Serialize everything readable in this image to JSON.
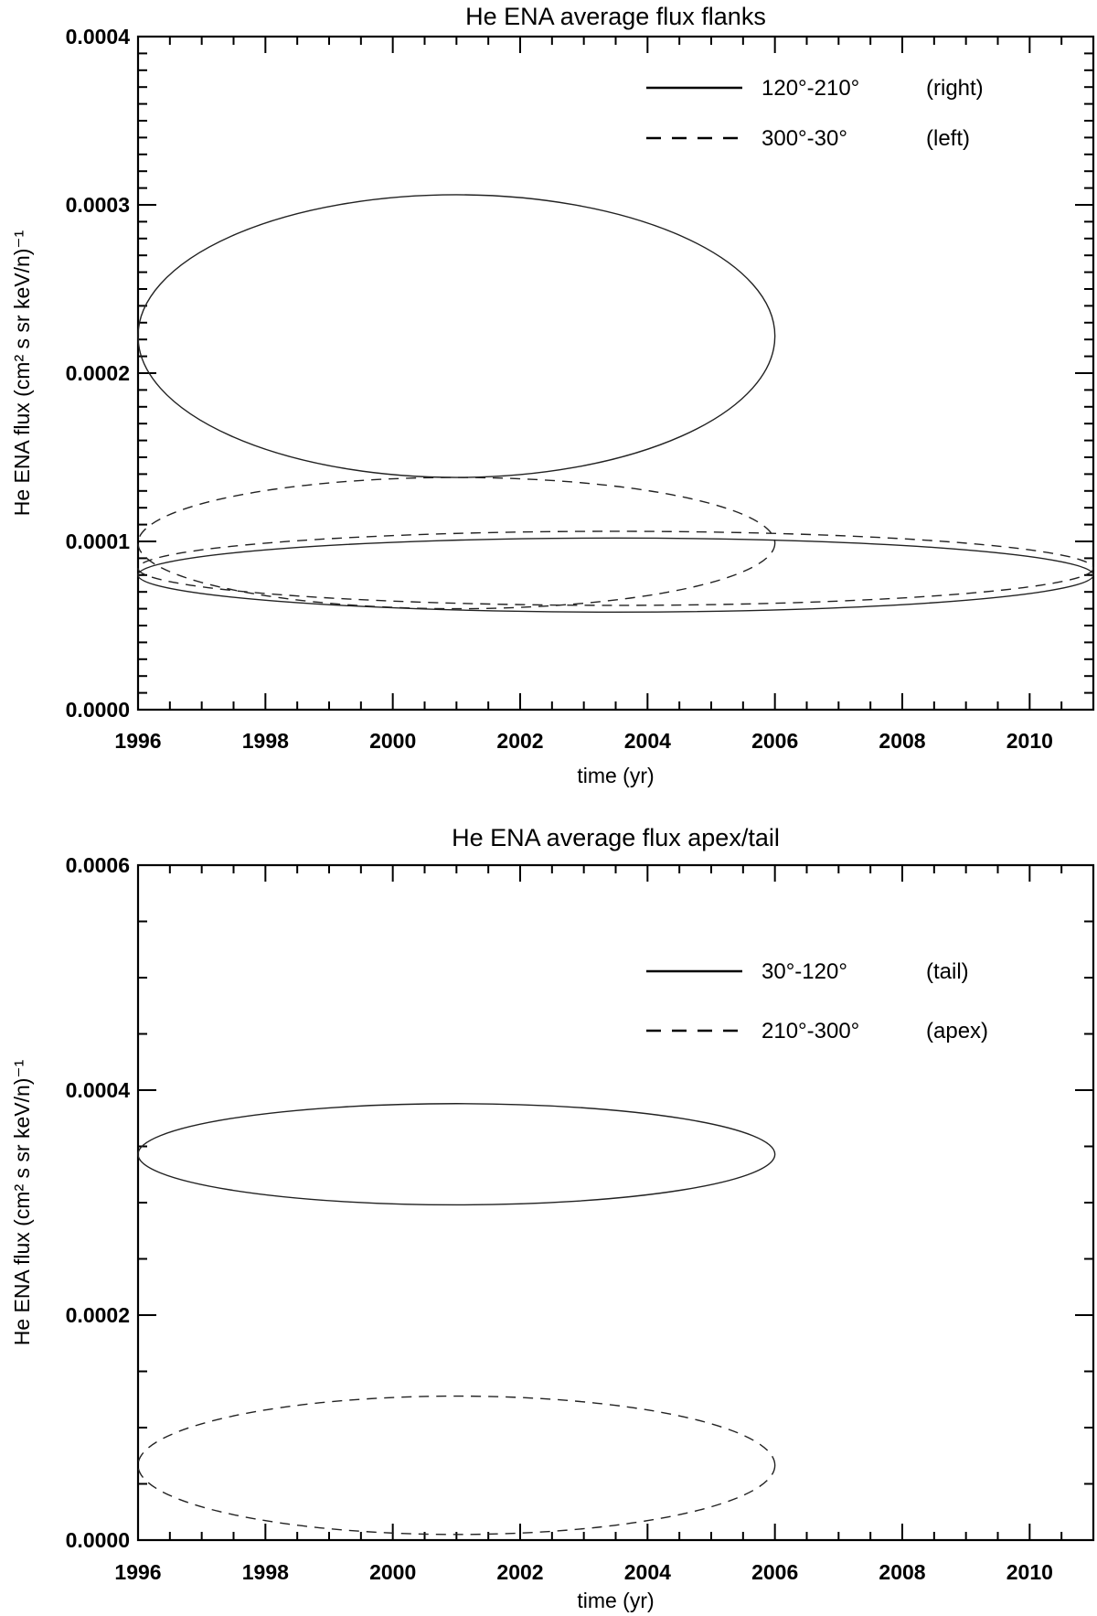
{
  "chart_data": [
    {
      "type": "line",
      "title": "He ENA average flux flanks",
      "xlabel": "time (yr)",
      "ylabel": "He ENA flux (cm² s sr keV/n)⁻¹",
      "xlim": [
        1996,
        2011
      ],
      "ylim": [
        0.0,
        0.0004
      ],
      "xticks": [
        "1996",
        "1998",
        "2000",
        "2002",
        "2004",
        "2006",
        "2008",
        "2010"
      ],
      "yticks": [
        "0.0000",
        "0.0001",
        "0.0002",
        "0.0003",
        "0.0004"
      ],
      "legend_position": "top-right",
      "grid": false,
      "series": [
        {
          "name": "120°-210°",
          "note": "(right)",
          "style": "solid",
          "curves": [
            {
              "x_start": 1996,
              "x_end": 2006,
              "y_start": 0.000225,
              "y_end": 0.000222,
              "y_max": 0.000306,
              "y_min": 0.000138,
              "x_extreme": 2001
            },
            {
              "x_start": 1996,
              "x_end": 2011,
              "y_start": 8.5e-05,
              "y_end": 8.2e-05,
              "y_max": 0.000102,
              "y_min": 5.8e-05,
              "x_extreme": 2003.5
            }
          ]
        },
        {
          "name": "300°-30°",
          "note": "(left)",
          "style": "dashed",
          "curves": [
            {
              "x_start": 1996,
              "x_end": 2006,
              "y_start": 0.000102,
              "y_end": 9.9e-05,
              "y_max": 0.000138,
              "y_min": 6e-05,
              "x_extreme": 2001
            },
            {
              "x_start": 1996,
              "x_end": 2011,
              "y_start": 8.2e-05,
              "y_end": 8.5e-05,
              "y_max": 0.000106,
              "y_min": 6.2e-05,
              "x_extreme": 2003.5
            }
          ]
        }
      ]
    },
    {
      "type": "line",
      "title": "He ENA average flux apex/tail",
      "xlabel": "time (yr)",
      "ylabel": "He ENA flux (cm² s sr keV/n)⁻¹",
      "xlim": [
        1996,
        2011
      ],
      "ylim": [
        0.0,
        0.0006
      ],
      "xticks": [
        "1996",
        "1998",
        "2000",
        "2002",
        "2004",
        "2006",
        "2008",
        "2010"
      ],
      "yticks": [
        "0.0000",
        "0.0002",
        "0.0004",
        "0.0006"
      ],
      "legend_position": "top-right",
      "grid": false,
      "series": [
        {
          "name": "30°-120°",
          "note": "(tail)",
          "style": "solid",
          "curves": [
            {
              "x_start": 1996,
              "x_end": 2006,
              "y_start": 0.00035,
              "y_end": 0.000344,
              "y_max": 0.000388,
              "y_min": 0.000298,
              "x_extreme": 2001
            }
          ]
        },
        {
          "name": "210°-300°",
          "note": "(apex)",
          "style": "dashed",
          "curves": [
            {
              "x_start": 1996,
              "x_end": 2006,
              "y_start": 7e-05,
              "y_end": 6.8e-05,
              "y_max": 0.000128,
              "y_min": 5e-06,
              "x_extreme": 2001
            }
          ]
        }
      ]
    }
  ]
}
